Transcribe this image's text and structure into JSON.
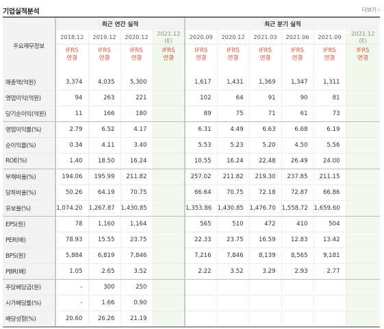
{
  "header": {
    "title": "기업실적분석",
    "more": "더보기 ›"
  },
  "table": {
    "row_header": "주요재무정보",
    "group_annual": "최근 연간 실적",
    "group_quarter": "최근 분기 실적",
    "dates": [
      "2018.12",
      "2019.12",
      "2020.12",
      "2021.12",
      "2020.09",
      "2020.12",
      "2021.03",
      "2021.06",
      "2021.09",
      "2021.12"
    ],
    "estimate_mark": "(E)",
    "ifrs_line1": "IFRS",
    "ifrs_line2": "연결",
    "rows": [
      {
        "label": "매출액(억원)",
        "values": [
          "3,374",
          "4,035",
          "5,300",
          "",
          "1,617",
          "1,431",
          "1,369",
          "1,347",
          "1,311",
          ""
        ]
      },
      {
        "label": "영업이익(억원)",
        "values": [
          "94",
          "263",
          "221",
          "",
          "102",
          "64",
          "91",
          "90",
          "81",
          ""
        ]
      },
      {
        "label": "당기순이익(억원)",
        "values": [
          "11",
          "166",
          "180",
          "",
          "89",
          "75",
          "71",
          "61",
          "73",
          ""
        ]
      },
      {
        "label": "영업이익률(%)",
        "values": [
          "2.79",
          "6.52",
          "4.17",
          "",
          "6.31",
          "4.49",
          "6.63",
          "6.68",
          "6.19",
          ""
        ]
      },
      {
        "label": "순이익률(%)",
        "values": [
          "0.34",
          "4.11",
          "3.40",
          "",
          "5.53",
          "5.23",
          "5.20",
          "4.50",
          "5.56",
          ""
        ]
      },
      {
        "label": "ROE(%)",
        "values": [
          "1.40",
          "18.50",
          "16.24",
          "",
          "10.55",
          "16.24",
          "22.48",
          "26.49",
          "24.00",
          ""
        ]
      },
      {
        "label": "부채비율(%)",
        "values": [
          "194.06",
          "195.99",
          "211.82",
          "",
          "257.02",
          "211.82",
          "219.30",
          "237.85",
          "211.15",
          ""
        ]
      },
      {
        "label": "당좌비율(%)",
        "values": [
          "50.26",
          "64.19",
          "70.75",
          "",
          "66.64",
          "70.75",
          "72.18",
          "72.87",
          "66.86",
          ""
        ]
      },
      {
        "label": "유보율(%)",
        "values": [
          "1,074.20",
          "1,267.87",
          "1,430.85",
          "",
          "1,353.86",
          "1,430.85",
          "1,476.70",
          "1,558.72",
          "1,659.60",
          ""
        ]
      },
      {
        "label": "EPS(원)",
        "values": [
          "78",
          "1,160",
          "1,164",
          "",
          "565",
          "510",
          "472",
          "410",
          "504",
          ""
        ]
      },
      {
        "label": "PER(배)",
        "values": [
          "78.93",
          "15.55",
          "23.75",
          "",
          "22.33",
          "23.75",
          "16.59",
          "12.83",
          "13.42",
          ""
        ]
      },
      {
        "label": "BPS(원)",
        "values": [
          "5,884",
          "6,819",
          "7,846",
          "",
          "7,216",
          "7,846",
          "8,139",
          "8,565",
          "9,181",
          ""
        ]
      },
      {
        "label": "PBR(배)",
        "values": [
          "1.05",
          "2.65",
          "3.52",
          "",
          "2.22",
          "3.52",
          "3.29",
          "2.93",
          "2.77",
          ""
        ]
      },
      {
        "label": "주당배당금(원)",
        "values": [
          "-",
          "300",
          "250",
          "",
          "",
          "",
          "",
          "",
          "",
          ""
        ]
      },
      {
        "label": "시가배당률(%)",
        "values": [
          "-",
          "1.66",
          "0.90",
          "",
          "",
          "",
          "",
          "",
          "",
          ""
        ]
      },
      {
        "label": "배당성향(%)",
        "values": [
          "20.60",
          "26.26",
          "21.19",
          "",
          "",
          "",
          "",
          "",
          "",
          ""
        ]
      }
    ]
  }
}
